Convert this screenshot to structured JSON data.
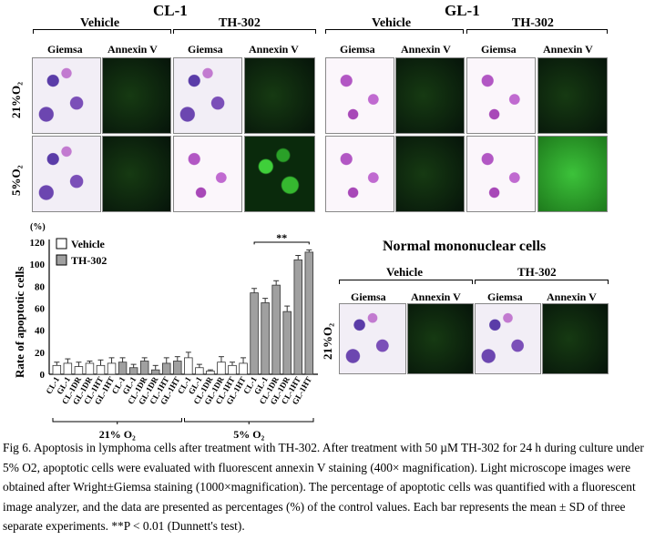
{
  "panels": {
    "cl1": {
      "title": "CL-1",
      "vehicle": "Vehicle",
      "th": "TH-302",
      "giemsa": "Giemsa",
      "annexin": "Annexin V"
    },
    "gl1": {
      "title": "GL-1",
      "vehicle": "Vehicle",
      "th": "TH-302",
      "giemsa": "Giemsa",
      "annexin": "Annexin V"
    },
    "row_labels": [
      "21%O₂",
      "5%O₂"
    ],
    "normal": {
      "title": "Normal mononuclear cells",
      "vehicle": "Vehicle",
      "th": "TH-302",
      "giemsa": "Giemsa",
      "annexin": "Annexin V",
      "row_label": "21%O₂"
    }
  },
  "chart_data": {
    "type": "bar",
    "ylabel": "Rate of apoptotic cells",
    "yunit": "(%)",
    "ylim": [
      0,
      120
    ],
    "yticks": [
      0,
      20,
      40,
      60,
      80,
      100,
      120
    ],
    "legend": [
      {
        "name": "Vehicle",
        "color": "#ffffff"
      },
      {
        "name": "TH-302",
        "color": "#a0a0a0"
      }
    ],
    "legend_position": "top-left",
    "groups": [
      {
        "label": "21% O₂",
        "bars": [
          {
            "cat": "CL-1",
            "series": "Vehicle",
            "value": 8,
            "sd": 3
          },
          {
            "cat": "GL-1",
            "series": "Vehicle",
            "value": 10,
            "sd": 4
          },
          {
            "cat": "CL-1DR",
            "series": "Vehicle",
            "value": 7,
            "sd": 4
          },
          {
            "cat": "GL-1DR",
            "series": "Vehicle",
            "value": 10,
            "sd": 2
          },
          {
            "cat": "CL-1HT",
            "series": "Vehicle",
            "value": 8,
            "sd": 5
          },
          {
            "cat": "GL-1HT",
            "series": "Vehicle",
            "value": 10,
            "sd": 5
          },
          {
            "cat": "CL-1",
            "series": "TH-302",
            "value": 11,
            "sd": 4
          },
          {
            "cat": "GL-1",
            "series": "TH-302",
            "value": 6,
            "sd": 3
          },
          {
            "cat": "CL-1DR",
            "series": "TH-302",
            "value": 12,
            "sd": 3
          },
          {
            "cat": "GL-1DR",
            "series": "TH-302",
            "value": 4,
            "sd": 4
          },
          {
            "cat": "CL-1HT",
            "series": "TH-302",
            "value": 10,
            "sd": 5
          },
          {
            "cat": "GL-1HT",
            "series": "TH-302",
            "value": 12,
            "sd": 4
          }
        ]
      },
      {
        "label": "5% O₂",
        "bars": [
          {
            "cat": "CL-1",
            "series": "Vehicle",
            "value": 15,
            "sd": 5
          },
          {
            "cat": "GL-1",
            "series": "Vehicle",
            "value": 6,
            "sd": 3
          },
          {
            "cat": "CL-1DR",
            "series": "Vehicle",
            "value": 3,
            "sd": 1
          },
          {
            "cat": "GL-1DR",
            "series": "Vehicle",
            "value": 11,
            "sd": 5
          },
          {
            "cat": "CL-1HT",
            "series": "Vehicle",
            "value": 8,
            "sd": 3
          },
          {
            "cat": "GL-1HT",
            "series": "Vehicle",
            "value": 10,
            "sd": 5
          },
          {
            "cat": "CL-1",
            "series": "TH-302",
            "value": 74,
            "sd": 4
          },
          {
            "cat": "GL-1",
            "series": "TH-302",
            "value": 65,
            "sd": 4
          },
          {
            "cat": "CL-1DR",
            "series": "TH-302",
            "value": 81,
            "sd": 4
          },
          {
            "cat": "GL-1DR",
            "series": "TH-302",
            "value": 57,
            "sd": 5
          },
          {
            "cat": "CL-1HT",
            "series": "TH-302",
            "value": 104,
            "sd": 4
          },
          {
            "cat": "GL-1HT",
            "series": "TH-302",
            "value": 111,
            "sd": 2
          }
        ]
      }
    ],
    "annotation": "**"
  },
  "caption": "Fig 6. Apoptosis in lymphoma cells after treatment with TH-302. After treatment with 50 µM TH-302 for 24 h during culture under 5% O2, apoptotic cells were evaluated with fluorescent annexin V staining (400× magnification). Light microscope images were obtained after Wright±Giemsa staining (1000×magnification). The percentage of apoptotic cells was quantified with a fluorescent image analyzer, and the data are presented as percentages (%) of the control values. Each bar represents the mean ± SD of three separate experiments. **P < 0.01 (Dunnett's test)."
}
